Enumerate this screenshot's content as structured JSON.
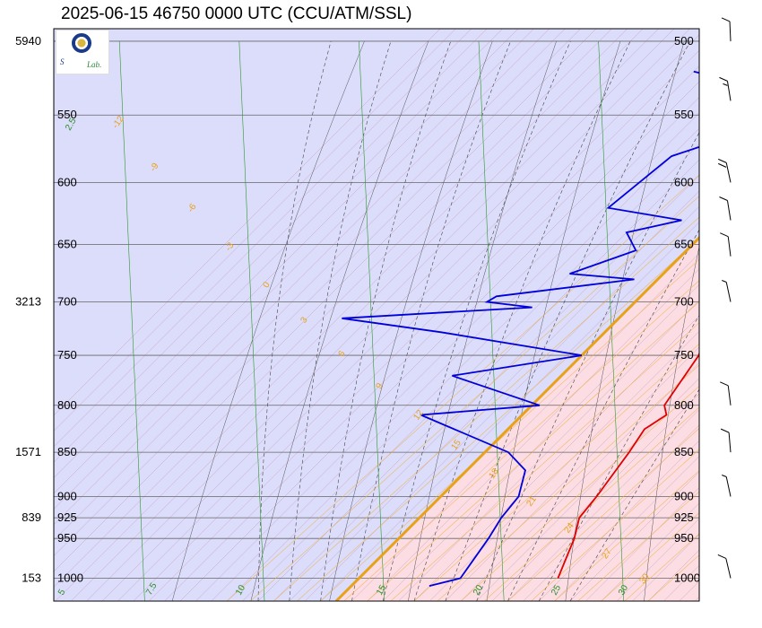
{
  "title": "2025-06-15 46750 0000 UTC (CCU/ATM/SSL)",
  "logo": {
    "alt": "Sounding Lab"
  },
  "chart_data": {
    "type": "skew-t",
    "pressure_levels": [
      500,
      550,
      600,
      650,
      700,
      750,
      800,
      850,
      900,
      925,
      950,
      1000
    ],
    "pressure_range": [
      1030,
      492
    ],
    "height_labels": [
      {
        "p": 500,
        "height": "5940"
      },
      {
        "p": 700,
        "height": "3213"
      },
      {
        "p": 850,
        "height": "1571"
      },
      {
        "p": 925,
        "height": "839"
      },
      {
        "p": 1000,
        "height": "153"
      }
    ],
    "isotherm_range_c": [
      -60,
      50
    ],
    "isotherm_step_c": 2,
    "mixing_ratio_labels": [
      "-12",
      "-9",
      "-6",
      "-3",
      "0",
      "3",
      "6",
      "9",
      "12",
      "15",
      "18",
      "21",
      "24",
      "27",
      "30",
      "33"
    ],
    "dry_adiabat_labels": [
      "2.5",
      "5",
      "7.5",
      "10",
      "15",
      "20",
      "25",
      "30"
    ],
    "temperature_series": {
      "name": "temperature",
      "color": "#e00000",
      "points": [
        {
          "p": 1000,
          "t": 25.5
        },
        {
          "p": 950,
          "t": 22.5
        },
        {
          "p": 925,
          "t": 20.5
        },
        {
          "p": 900,
          "t": 20.0
        },
        {
          "p": 850,
          "t": 18.5
        },
        {
          "p": 825,
          "t": 17.5
        },
        {
          "p": 810,
          "t": 18.5
        },
        {
          "p": 800,
          "t": 17.0
        },
        {
          "p": 750,
          "t": 15.0
        },
        {
          "p": 720,
          "t": 12.5
        },
        {
          "p": 710,
          "t": 12.2
        },
        {
          "p": 700,
          "t": 11.0
        },
        {
          "p": 690,
          "t": 9.8
        },
        {
          "p": 670,
          "t": 8.5
        },
        {
          "p": 650,
          "t": 6.5
        },
        {
          "p": 630,
          "t": 5.5
        },
        {
          "p": 620,
          "t": 5.8
        },
        {
          "p": 600,
          "t": 3.5
        },
        {
          "p": 580,
          "t": 1.5
        },
        {
          "p": 560,
          "t": -1.5
        },
        {
          "p": 545,
          "t": -4.5
        },
        {
          "p": 530,
          "t": -5.0
        },
        {
          "p": 520,
          "t": -7.5
        },
        {
          "p": 500,
          "t": -10.0
        }
      ]
    },
    "dewpoint_series": {
      "name": "dewpoint",
      "color": "#0000dd",
      "points": [
        {
          "p": 1010,
          "t": 10.0
        },
        {
          "p": 1000,
          "t": 13.0
        },
        {
          "p": 950,
          "t": 11.5
        },
        {
          "p": 925,
          "t": 10.5
        },
        {
          "p": 900,
          "t": 10.0
        },
        {
          "p": 870,
          "t": 7.5
        },
        {
          "p": 850,
          "t": 3.0
        },
        {
          "p": 810,
          "t": -13.0
        },
        {
          "p": 800,
          "t": 1.0
        },
        {
          "p": 770,
          "t": -14.0
        },
        {
          "p": 750,
          "t": 0.0
        },
        {
          "p": 728,
          "t": -21.0
        },
        {
          "p": 715,
          "t": -35.5
        },
        {
          "p": 705,
          "t": -12.5
        },
        {
          "p": 700,
          "t": -19.0
        },
        {
          "p": 695,
          "t": -18.5
        },
        {
          "p": 680,
          "t": -3.0
        },
        {
          "p": 675,
          "t": -12.0
        },
        {
          "p": 655,
          "t": -6.5
        },
        {
          "p": 640,
          "t": -10.0
        },
        {
          "p": 630,
          "t": -4.5
        },
        {
          "p": 620,
          "t": -15.5
        },
        {
          "p": 580,
          "t": -14.0
        },
        {
          "p": 560,
          "t": -7.0
        },
        {
          "p": 535,
          "t": -6.5
        },
        {
          "p": 520,
          "t": -22.0
        }
      ]
    },
    "wind_barbs": [
      {
        "p": 500,
        "dir": 350,
        "speed_kt": 10
      },
      {
        "p": 540,
        "dir": 320,
        "speed_kt": 15
      },
      {
        "p": 600,
        "dir": 300,
        "speed_kt": 20
      },
      {
        "p": 630,
        "dir": 320,
        "speed_kt": 10
      },
      {
        "p": 660,
        "dir": 330,
        "speed_kt": 10
      },
      {
        "p": 700,
        "dir": 300,
        "speed_kt": 5
      },
      {
        "p": 800,
        "dir": 330,
        "speed_kt": 10
      },
      {
        "p": 850,
        "dir": 340,
        "speed_kt": 10
      },
      {
        "p": 900,
        "dir": 300,
        "speed_kt": 5
      },
      {
        "p": 1000,
        "dir": 250,
        "speed_kt": 10
      }
    ],
    "colors": {
      "background_pink": "#fbdde3",
      "background_blue": "#dcdcfb",
      "freezing_line": "#e8a21a",
      "isotherm": "#b07890",
      "dry_adiabat": "#2a9a2a",
      "moist_adiabat": "#444444",
      "mixing_ratio": "#f0b040"
    }
  }
}
